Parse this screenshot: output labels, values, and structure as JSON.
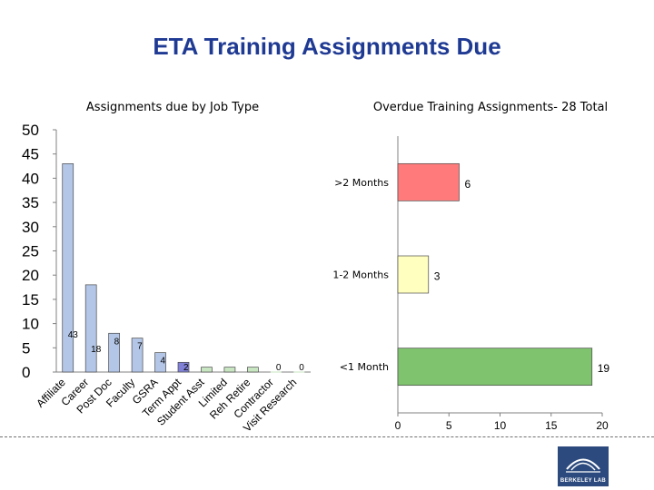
{
  "slide": {
    "title": "ETA Training Assignments Due",
    "logo_text": "BERKELEY LAB"
  },
  "chart_data": [
    {
      "type": "bar",
      "title": "Assignments due by Job Type",
      "categories": [
        "Affiliate",
        "Career",
        "Post Doc",
        "Faculty",
        "GSRA",
        "Term Appt",
        "Student Asst",
        "Limited",
        "Reh Retire",
        "Contractor",
        "Visit Research"
      ],
      "values": [
        43,
        18,
        8,
        7,
        4,
        2,
        1,
        1,
        1,
        0,
        0
      ],
      "data_labels": [
        "43",
        "18",
        "8",
        "7",
        "4",
        "2",
        "",
        "",
        "",
        "0",
        "0"
      ],
      "colors": [
        "#b3c6e7",
        "#b3c6e7",
        "#b3c6e7",
        "#b3c6e7",
        "#b3c6e7",
        "#8080d6",
        "#c8e6c1",
        "#c8e6c1",
        "#c8e6c1",
        "#c8e6c1",
        "#c8e6c1"
      ],
      "ylim": [
        0,
        50
      ],
      "yticks": [
        0,
        5,
        10,
        15,
        20,
        25,
        30,
        35,
        40,
        45,
        50
      ],
      "grid": false
    },
    {
      "type": "bar",
      "orientation": "horizontal",
      "title": "Overdue Training Assignments- 28 Total",
      "categories": [
        ">2 Months",
        "1-2 Months",
        "<1 Month"
      ],
      "values": [
        6,
        3,
        19
      ],
      "colors": [
        "#ff7b7b",
        "#ffffc0",
        "#7fc36e"
      ],
      "xlim": [
        0,
        20
      ],
      "xticks": [
        0,
        5,
        10,
        15,
        20
      ],
      "grid": false
    }
  ]
}
